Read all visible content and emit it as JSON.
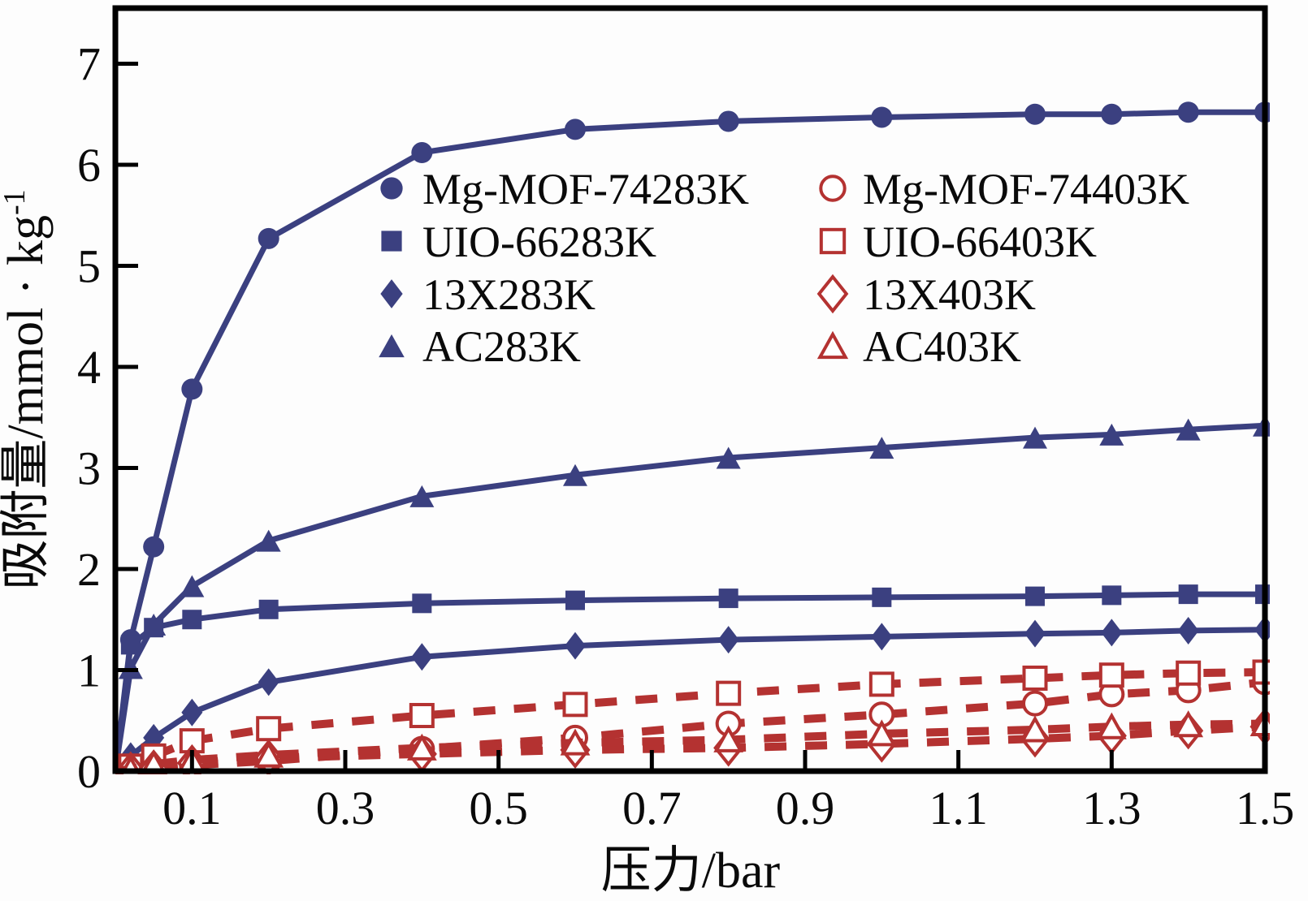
{
  "figure": {
    "background": "#fdfdfd",
    "frame_color": "#000000",
    "cold_series_color": "#3b4080",
    "hot_series_color": "#b43231"
  },
  "chart_data": {
    "type": "line",
    "title": "",
    "xlabel": "压力/bar",
    "ylabel": "吸附量/mmol·kg⁻¹",
    "ylabel_display": {
      "base": "吸附量/mmol · kg",
      "sup": "-1"
    },
    "xlim": [
      0,
      1.5
    ],
    "ylim": [
      0,
      7.55
    ],
    "grid": false,
    "legend_position": "upper-center, two columns, no frame",
    "x_ticks": [
      0.1,
      0.3,
      0.5,
      0.7,
      0.9,
      1.1,
      1.3,
      1.5
    ],
    "x_tick_labels": [
      "0.1",
      "0.3",
      "0.5",
      "0.7",
      "0.9",
      "1.1",
      "1.3",
      "1.5"
    ],
    "y_ticks": [
      0,
      1,
      2,
      3,
      4,
      5,
      6,
      7
    ],
    "y_tick_labels": [
      "0",
      "1",
      "2",
      "3",
      "4",
      "5",
      "6",
      "7"
    ],
    "x": [
      0,
      0.02,
      0.05,
      0.1,
      0.2,
      0.4,
      0.6,
      0.8,
      1.0,
      1.2,
      1.3,
      1.4,
      1.5
    ],
    "series": [
      {
        "label": "Mg-MOF-74283K",
        "marker": "circle",
        "style": "filled",
        "line": "solid",
        "color": "#3b4080",
        "y": [
          0,
          1.3,
          2.22,
          3.78,
          5.27,
          6.12,
          6.35,
          6.43,
          6.47,
          6.5,
          6.5,
          6.52,
          6.52
        ]
      },
      {
        "label": "UIO-66283K",
        "marker": "square",
        "style": "filled",
        "line": "solid",
        "color": "#3b4080",
        "y": [
          0,
          1.25,
          1.42,
          1.5,
          1.6,
          1.66,
          1.69,
          1.71,
          1.72,
          1.73,
          1.74,
          1.75,
          1.75
        ]
      },
      {
        "label": "13X283K",
        "marker": "diamond",
        "style": "filled",
        "line": "solid",
        "color": "#3b4080",
        "y": [
          0,
          0.15,
          0.33,
          0.58,
          0.88,
          1.13,
          1.24,
          1.3,
          1.33,
          1.36,
          1.37,
          1.39,
          1.4
        ]
      },
      {
        "label": "AC283K",
        "marker": "triangle",
        "style": "filled",
        "line": "solid",
        "color": "#3b4080",
        "y": [
          0,
          1.02,
          1.45,
          1.83,
          2.28,
          2.72,
          2.93,
          3.1,
          3.2,
          3.3,
          3.33,
          3.38,
          3.42
        ]
      },
      {
        "label": "Mg-MOF-74403K",
        "marker": "circle",
        "style": "open",
        "line": "dashed",
        "color": "#b43231",
        "y": [
          0,
          0.01,
          0.03,
          0.06,
          0.1,
          0.22,
          0.33,
          0.47,
          0.56,
          0.67,
          0.76,
          0.8,
          0.88
        ]
      },
      {
        "label": "UIO-66403K",
        "marker": "square",
        "style": "open",
        "line": "dashed",
        "color": "#b43231",
        "y": [
          0,
          0.05,
          0.15,
          0.3,
          0.42,
          0.55,
          0.66,
          0.77,
          0.86,
          0.92,
          0.95,
          0.97,
          0.98
        ]
      },
      {
        "label": "13X403K",
        "marker": "diamond",
        "style": "open",
        "line": "dashed",
        "color": "#b43231",
        "y": [
          0,
          0.01,
          0.03,
          0.08,
          0.13,
          0.17,
          0.21,
          0.23,
          0.27,
          0.32,
          0.35,
          0.4,
          0.44
        ]
      },
      {
        "label": "AC403K",
        "marker": "triangle",
        "style": "open",
        "line": "dashed",
        "color": "#b43231",
        "y": [
          0,
          0.02,
          0.07,
          0.11,
          0.16,
          0.23,
          0.28,
          0.31,
          0.37,
          0.41,
          0.44,
          0.46,
          0.47
        ]
      }
    ]
  }
}
